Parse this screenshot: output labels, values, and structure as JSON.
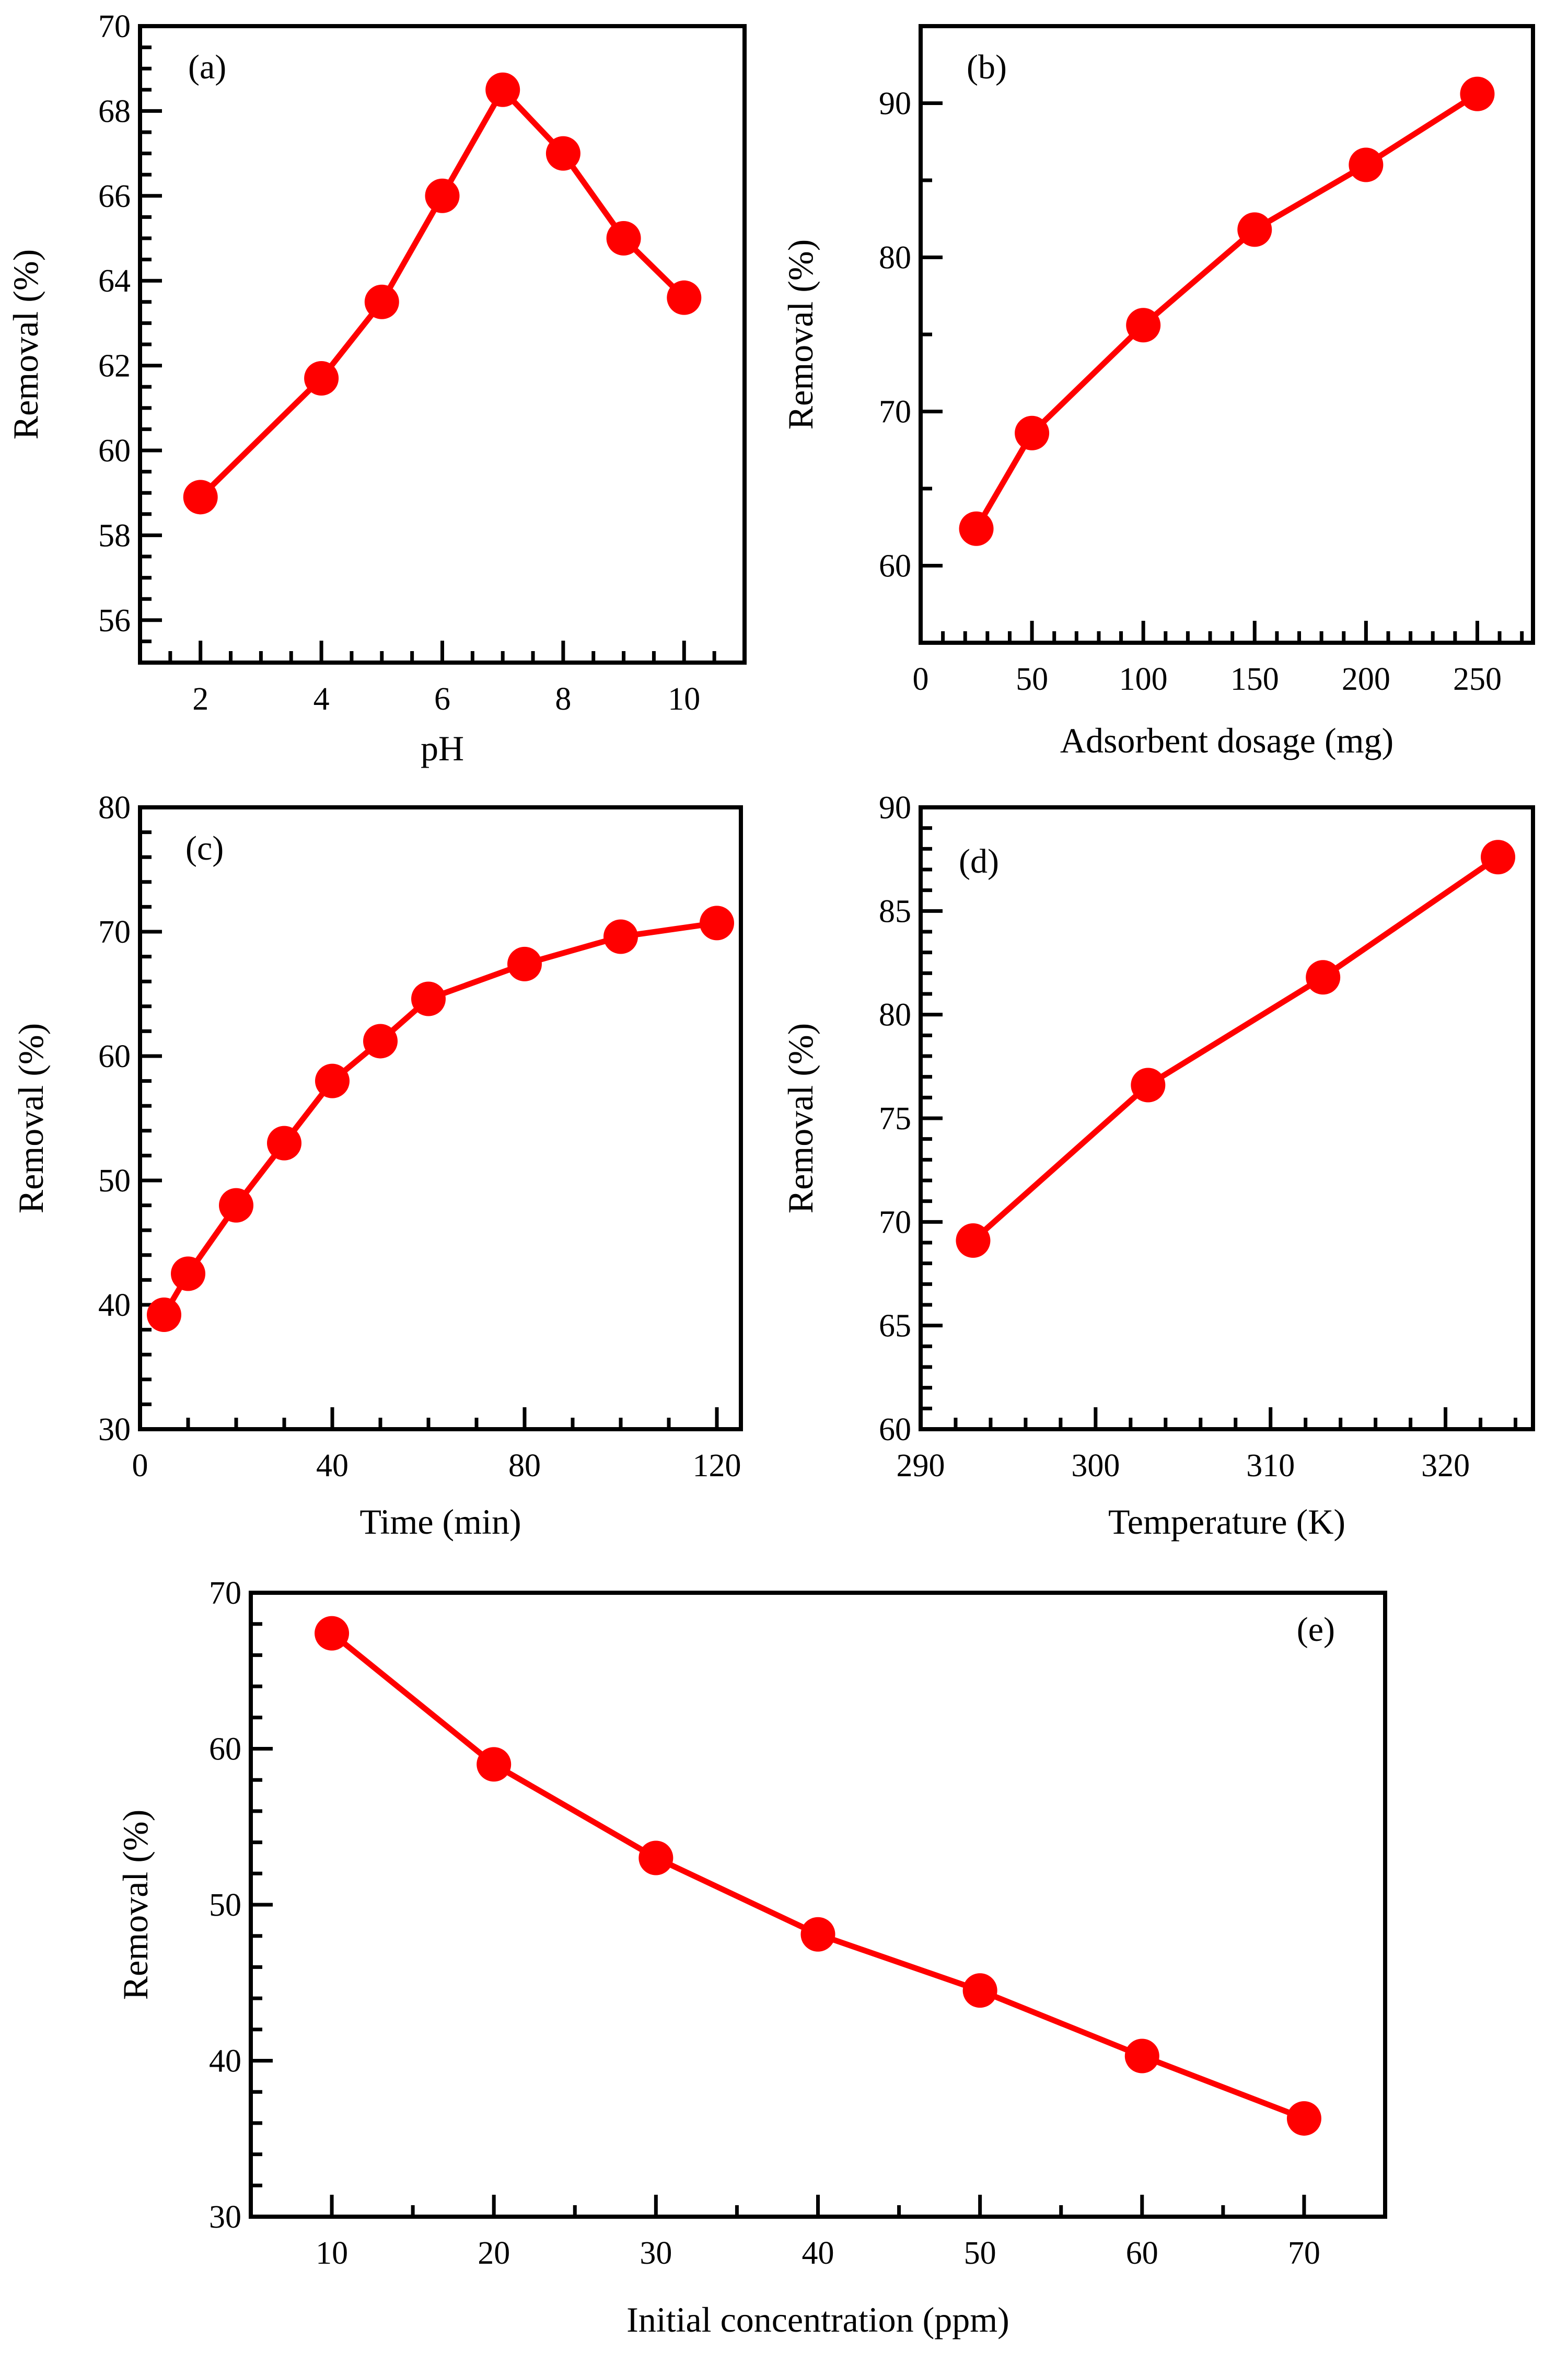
{
  "colors": {
    "series": "#ff0000",
    "axis": "#000000",
    "background": "#ffffff"
  },
  "chart_data": [
    {
      "id": "a",
      "type": "line",
      "panel_label": "(a)",
      "xlabel": "pH",
      "ylabel": "Removal (%)",
      "xlim": [
        1,
        11
      ],
      "ylim": [
        55,
        70
      ],
      "xticks": [
        2,
        4,
        6,
        8,
        10
      ],
      "xtick_labels": [
        "2",
        "4",
        "6",
        "8",
        "10"
      ],
      "xminor": [
        1,
        1.5,
        2.5,
        3,
        3.5,
        4.5,
        5,
        5.5,
        6.5,
        7,
        7.5,
        8.5,
        9,
        9.5,
        10.5,
        11
      ],
      "yticks": [
        56,
        58,
        60,
        62,
        64,
        66,
        68,
        70
      ],
      "ytick_labels": [
        "56",
        "58",
        "60",
        "62",
        "64",
        "66",
        "68",
        "70"
      ],
      "yminor": [
        55,
        55.5,
        56.5,
        57,
        57.5,
        58.5,
        59,
        59.5,
        60.5,
        61,
        61.5,
        62.5,
        63,
        63.5,
        64.5,
        65,
        65.5,
        66.5,
        67,
        67.5,
        68.5,
        69,
        69.5
      ],
      "series": [
        {
          "name": "Removal",
          "x": [
            2,
            4,
            5,
            6,
            7,
            8,
            9,
            10
          ],
          "y": [
            58.9,
            61.7,
            63.5,
            66.0,
            68.5,
            67.0,
            65.0,
            63.6
          ]
        }
      ]
    },
    {
      "id": "b",
      "type": "line",
      "panel_label": "(b)",
      "xlabel": "Adsorbent dosage (mg)",
      "ylabel": "Removal (%)",
      "xlim": [
        0,
        275
      ],
      "ylim": [
        55,
        95
      ],
      "xticks": [
        0,
        50,
        100,
        150,
        200,
        250
      ],
      "xtick_labels": [
        "0",
        "50",
        "100",
        "150",
        "200",
        "250"
      ],
      "xminor": [
        10,
        20,
        30,
        40,
        60,
        70,
        80,
        90,
        110,
        120,
        130,
        140,
        160,
        170,
        180,
        190,
        210,
        220,
        230,
        240,
        260,
        270
      ],
      "yticks": [
        60,
        70,
        80,
        90
      ],
      "ytick_labels": [
        "60",
        "70",
        "80",
        "90"
      ],
      "yminor": [
        55,
        65,
        75,
        85,
        95
      ],
      "series": [
        {
          "name": "Removal",
          "x": [
            25,
            50,
            100,
            150,
            200,
            250
          ],
          "y": [
            62.4,
            68.6,
            75.6,
            81.8,
            86.0,
            90.6
          ]
        }
      ]
    },
    {
      "id": "c",
      "type": "line",
      "panel_label": "(c)",
      "xlabel": "Time (min)",
      "ylabel": "Removal (%)",
      "xlim": [
        0,
        125
      ],
      "ylim": [
        30,
        80
      ],
      "xticks": [
        0,
        40,
        80,
        120
      ],
      "xtick_labels": [
        "0",
        "40",
        "80",
        "120"
      ],
      "xminor": [
        10,
        20,
        30,
        50,
        60,
        70,
        90,
        100,
        110
      ],
      "yticks": [
        30,
        40,
        50,
        60,
        70,
        80
      ],
      "ytick_labels": [
        "30",
        "40",
        "50",
        "60",
        "70",
        "80"
      ],
      "yminor": [
        32,
        34,
        36,
        38,
        42,
        44,
        46,
        48,
        52,
        54,
        56,
        58,
        62,
        64,
        66,
        68,
        72,
        74,
        76,
        78
      ],
      "series": [
        {
          "name": "Removal",
          "x": [
            5,
            10,
            20,
            30,
            40,
            50,
            60,
            80,
            100,
            120
          ],
          "y": [
            39.2,
            42.5,
            48.0,
            53.0,
            58.0,
            61.2,
            64.6,
            67.4,
            69.6,
            70.7
          ]
        }
      ]
    },
    {
      "id": "d",
      "type": "line",
      "panel_label": "(d)",
      "xlabel": "Temperature (K)",
      "ylabel": "Removal (%)",
      "xlim": [
        290,
        325
      ],
      "ylim": [
        60,
        90
      ],
      "xticks": [
        290,
        300,
        310,
        320
      ],
      "xtick_labels": [
        "290",
        "300",
        "310",
        "320"
      ],
      "xminor": [
        292,
        294,
        296,
        298,
        302,
        304,
        306,
        308,
        312,
        314,
        316,
        318,
        322,
        324
      ],
      "yticks": [
        60,
        65,
        70,
        75,
        80,
        85,
        90
      ],
      "ytick_labels": [
        "60",
        "65",
        "70",
        "75",
        "80",
        "85",
        "90"
      ],
      "yminor": [
        61,
        62,
        63,
        64,
        66,
        67,
        68,
        69,
        71,
        72,
        73,
        74,
        76,
        77,
        78,
        79,
        81,
        82,
        83,
        84,
        86,
        87,
        88,
        89
      ],
      "series": [
        {
          "name": "Removal",
          "x": [
            293,
            303,
            313,
            323
          ],
          "y": [
            69.1,
            76.6,
            81.8,
            87.6
          ]
        }
      ]
    },
    {
      "id": "e",
      "type": "line",
      "panel_label": "(e)",
      "xlabel": "Initial concentration (ppm)",
      "ylabel": "Removal (%)",
      "xlim": [
        5,
        75
      ],
      "ylim": [
        30,
        70
      ],
      "xticks": [
        10,
        20,
        30,
        40,
        50,
        60,
        70
      ],
      "xtick_labels": [
        "10",
        "20",
        "30",
        "40",
        "50",
        "60",
        "70"
      ],
      "xminor": [
        5,
        15,
        25,
        35,
        45,
        55,
        65,
        75
      ],
      "yticks": [
        30,
        40,
        50,
        60,
        70
      ],
      "ytick_labels": [
        "30",
        "40",
        "50",
        "60",
        "70"
      ],
      "yminor": [
        32,
        34,
        36,
        38,
        42,
        44,
        46,
        48,
        52,
        54,
        56,
        58,
        62,
        64,
        66,
        68
      ],
      "series": [
        {
          "name": "Removal",
          "x": [
            10,
            20,
            30,
            40,
            50,
            60,
            70
          ],
          "y": [
            67.4,
            59.0,
            53.0,
            48.1,
            44.5,
            40.3,
            36.3
          ]
        }
      ]
    }
  ]
}
